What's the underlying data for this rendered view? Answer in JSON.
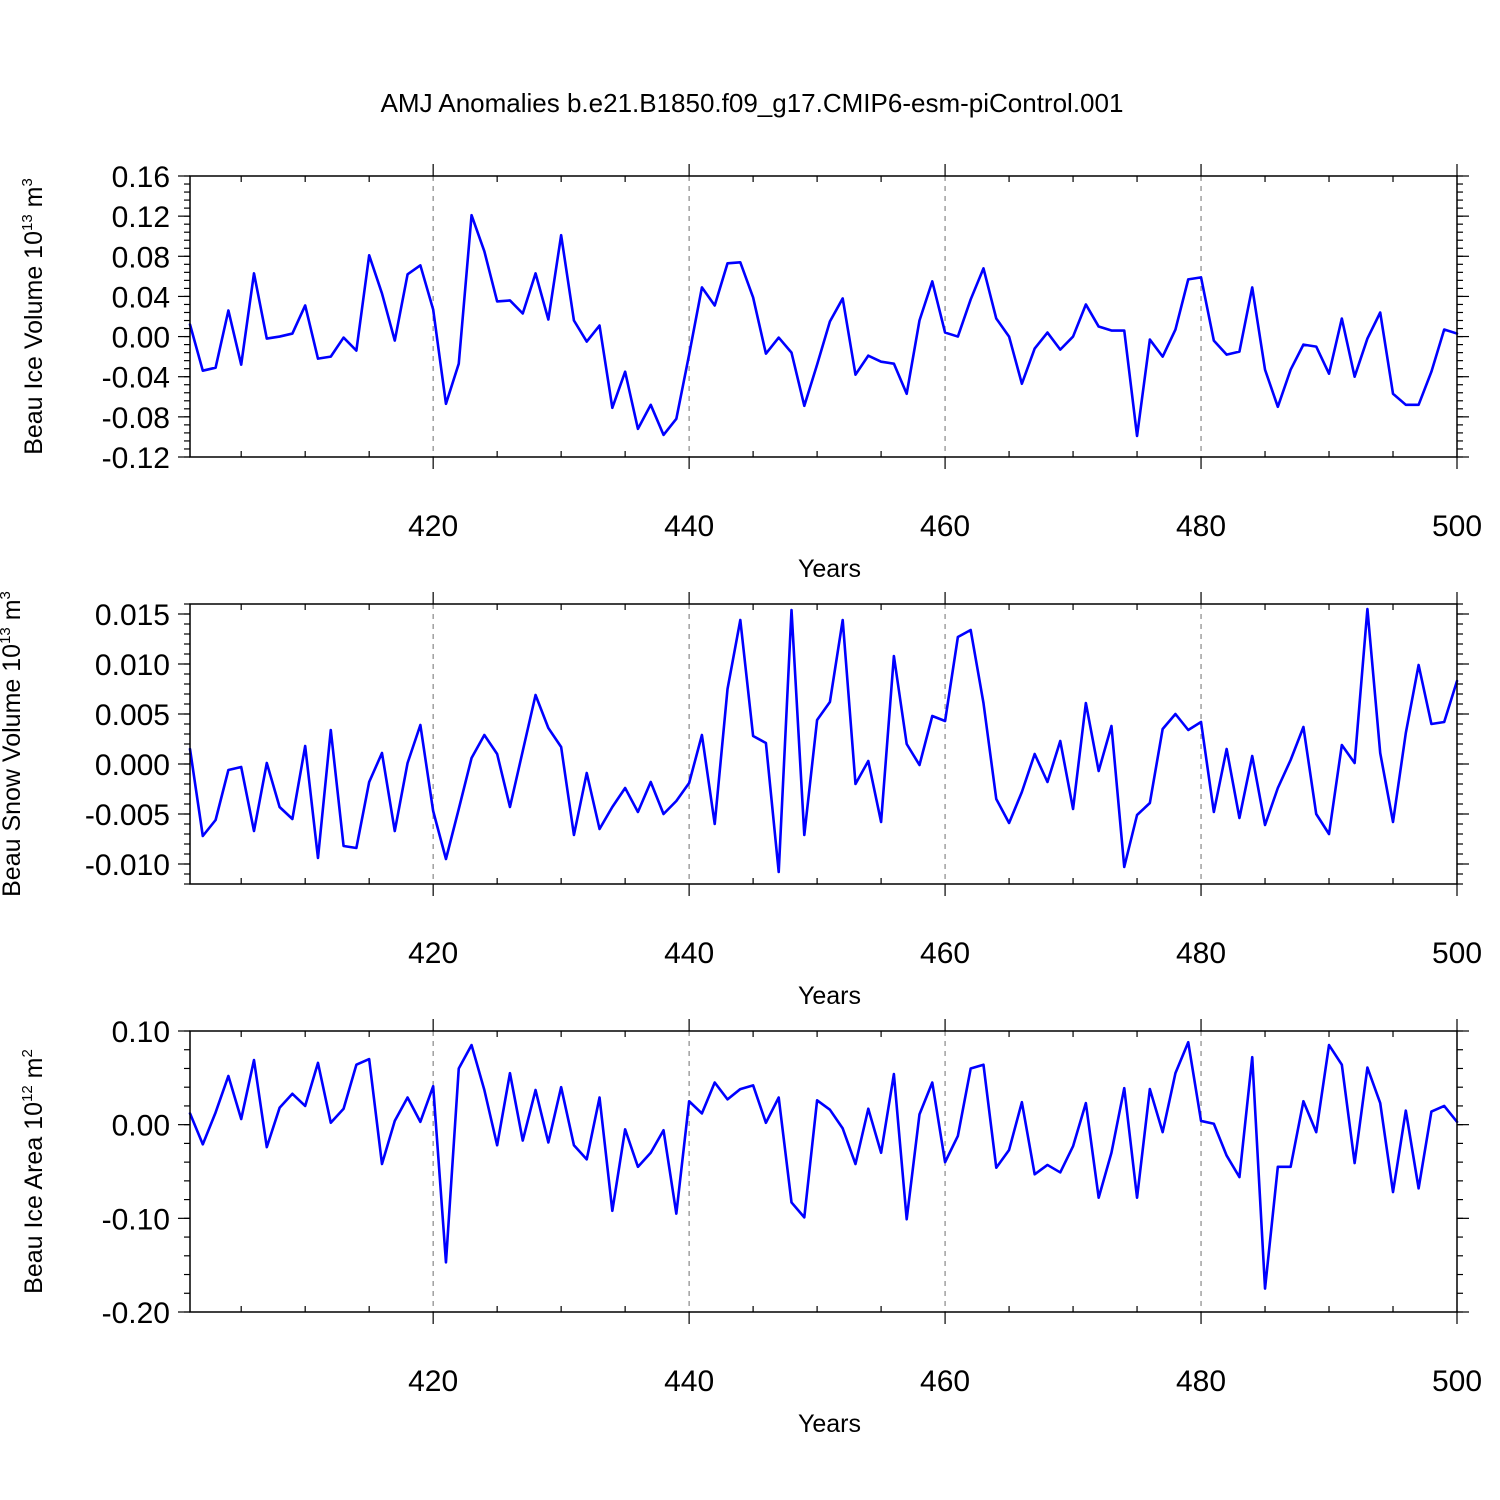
{
  "title": "AMJ Anomalies b.e21.B1850.f09_g17.CMIP6-esm-piControl.001",
  "colors": {
    "line": "#0000ff",
    "grid": "#888888",
    "axes": "#000000"
  },
  "chart_data": [
    {
      "type": "line",
      "title": "AMJ Anomalies b.e21.B1850.f09_g17.CMIP6-esm-piControl.001",
      "xlabel": "Years",
      "ylabel": "Beau Ice Volume 10",
      "ylabel_sup": "13",
      "ylabel_unit": "m",
      "ylabel_unit_sup": "3",
      "xlim": [
        401,
        500
      ],
      "ylim": [
        -0.12,
        0.16
      ],
      "xticks": [
        420,
        440,
        460,
        480,
        500
      ],
      "xtick_labels": [
        "420",
        "440",
        "460",
        "480",
        "500"
      ],
      "yticks": [
        -0.12,
        -0.08,
        -0.04,
        0.0,
        0.04,
        0.08,
        0.12,
        0.16
      ],
      "ytick_labels": [
        "-0.12",
        "-0.08",
        "-0.04",
        "0.00",
        "0.04",
        "0.08",
        "0.12",
        "0.16"
      ],
      "grid": "x-dashed",
      "series": [
        {
          "name": "Beau Ice Volume",
          "x_start": 401,
          "values": [
            0.012,
            -0.034,
            -0.031,
            0.026,
            -0.028,
            0.063,
            -0.002,
            0.0,
            0.003,
            0.031,
            -0.022,
            -0.02,
            -0.001,
            -0.014,
            0.081,
            0.043,
            -0.004,
            0.062,
            0.071,
            0.027,
            -0.067,
            -0.027,
            0.121,
            0.085,
            0.035,
            0.036,
            0.023,
            0.063,
            0.017,
            0.101,
            0.016,
            -0.005,
            0.011,
            -0.071,
            -0.035,
            -0.092,
            -0.068,
            -0.098,
            -0.082,
            -0.018,
            0.049,
            0.031,
            0.073,
            0.074,
            0.039,
            -0.017,
            -0.001,
            -0.016,
            -0.069,
            -0.028,
            0.015,
            0.038,
            -0.038,
            -0.019,
            -0.025,
            -0.027,
            -0.057,
            0.016,
            0.055,
            0.004,
            0.0,
            0.037,
            0.068,
            0.018,
            0.0,
            -0.047,
            -0.012,
            0.004,
            -0.013,
            0.0,
            0.032,
            0.01,
            0.006,
            0.006,
            -0.099,
            -0.003,
            -0.02,
            0.007,
            0.057,
            0.059,
            -0.004,
            -0.018,
            -0.015,
            0.049,
            -0.033,
            -0.07,
            -0.033,
            -0.008,
            -0.01,
            -0.037,
            0.018,
            -0.04,
            -0.002,
            0.024,
            -0.057,
            -0.068,
            -0.068,
            -0.035,
            0.007,
            0.003
          ]
        }
      ]
    },
    {
      "type": "line",
      "xlabel": "Years",
      "ylabel": "Beau Snow Volume 10",
      "ylabel_sup": "13",
      "ylabel_unit": "m",
      "ylabel_unit_sup": "3",
      "xlim": [
        401,
        500
      ],
      "ylim": [
        -0.012,
        0.016
      ],
      "xticks": [
        420,
        440,
        460,
        480,
        500
      ],
      "xtick_labels": [
        "420",
        "440",
        "460",
        "480",
        "500"
      ],
      "yticks": [
        -0.01,
        -0.005,
        0.0,
        0.005,
        0.01,
        0.015
      ],
      "ytick_labels": [
        "-0.010",
        "-0.005",
        "0.000",
        "0.005",
        "0.010",
        "0.015"
      ],
      "grid": "x-dashed",
      "series": [
        {
          "name": "Beau Snow Volume",
          "x_start": 401,
          "values": [
            0.0015,
            -0.0072,
            -0.0056,
            -0.0006,
            -0.0003,
            -0.0067,
            0.0001,
            -0.0043,
            -0.0055,
            0.0018,
            -0.0094,
            0.0034,
            -0.0082,
            -0.0084,
            -0.0018,
            0.0011,
            -0.0067,
            0.0001,
            0.0039,
            -0.0047,
            -0.0095,
            -0.0045,
            0.0006,
            0.0029,
            0.001,
            -0.0043,
            0.0013,
            0.0069,
            0.0036,
            0.0017,
            -0.0071,
            -0.0009,
            -0.0065,
            -0.0043,
            -0.0024,
            -0.0048,
            -0.0018,
            -0.005,
            -0.0037,
            -0.0019,
            0.0029,
            -0.006,
            0.0075,
            0.0144,
            0.0028,
            0.0021,
            -0.0108,
            0.0154,
            -0.0071,
            0.0044,
            0.0062,
            0.0144,
            -0.002,
            0.0003,
            -0.0058,
            0.0108,
            0.002,
            -0.0001,
            0.0048,
            0.0043,
            0.0127,
            0.0134,
            0.0061,
            -0.0035,
            -0.0059,
            -0.0028,
            0.001,
            -0.0018,
            0.0023,
            -0.0045,
            0.0061,
            -0.0007,
            0.0038,
            -0.0103,
            -0.0051,
            -0.0039,
            0.0035,
            0.005,
            0.0034,
            0.0042,
            -0.0048,
            0.0015,
            -0.0054,
            0.0008,
            -0.0061,
            -0.0024,
            0.0004,
            0.0037,
            -0.005,
            -0.007,
            0.0019,
            0.0001,
            0.0155,
            0.0011,
            -0.0058,
            0.0031,
            0.0099,
            0.004,
            0.0042,
            0.0083
          ]
        }
      ]
    },
    {
      "type": "line",
      "xlabel": "Years",
      "ylabel": "Beau Ice Area 10",
      "ylabel_sup": "12",
      "ylabel_unit": "m",
      "ylabel_unit_sup": "2",
      "xlim": [
        401,
        500
      ],
      "ylim": [
        -0.2,
        0.1
      ],
      "xticks": [
        420,
        440,
        460,
        480,
        500
      ],
      "xtick_labels": [
        "420",
        "440",
        "460",
        "480",
        "500"
      ],
      "yticks": [
        -0.2,
        -0.1,
        0.0,
        0.1
      ],
      "ytick_labels": [
        "-0.20",
        "-0.10",
        "0.00",
        "0.10"
      ],
      "grid": "x-dashed",
      "series": [
        {
          "name": "Beau Ice Area",
          "x_start": 401,
          "values": [
            0.012,
            -0.021,
            0.013,
            0.052,
            0.006,
            0.069,
            -0.024,
            0.018,
            0.033,
            0.02,
            0.066,
            0.002,
            0.017,
            0.064,
            0.07,
            -0.042,
            0.004,
            0.029,
            0.003,
            0.041,
            -0.147,
            0.06,
            0.085,
            0.037,
            -0.022,
            0.055,
            -0.017,
            0.037,
            -0.019,
            0.04,
            -0.022,
            -0.037,
            0.029,
            -0.092,
            -0.005,
            -0.045,
            -0.03,
            -0.006,
            -0.095,
            0.025,
            0.012,
            0.045,
            0.027,
            0.038,
            0.042,
            0.002,
            0.029,
            -0.083,
            -0.099,
            0.026,
            0.016,
            -0.004,
            -0.042,
            0.017,
            -0.03,
            0.054,
            -0.101,
            0.011,
            0.045,
            -0.04,
            -0.012,
            0.06,
            0.064,
            -0.046,
            -0.027,
            0.024,
            -0.053,
            -0.043,
            -0.051,
            -0.023,
            0.023,
            -0.078,
            -0.03,
            0.039,
            -0.078,
            0.038,
            -0.008,
            0.055,
            0.088,
            0.004,
            0.001,
            -0.033,
            -0.056,
            0.072,
            -0.175,
            -0.045,
            -0.045,
            0.025,
            -0.008,
            0.085,
            0.064,
            -0.041,
            0.061,
            0.023,
            -0.072,
            0.015,
            -0.068,
            0.014,
            0.02,
            0.003
          ]
        }
      ]
    }
  ]
}
